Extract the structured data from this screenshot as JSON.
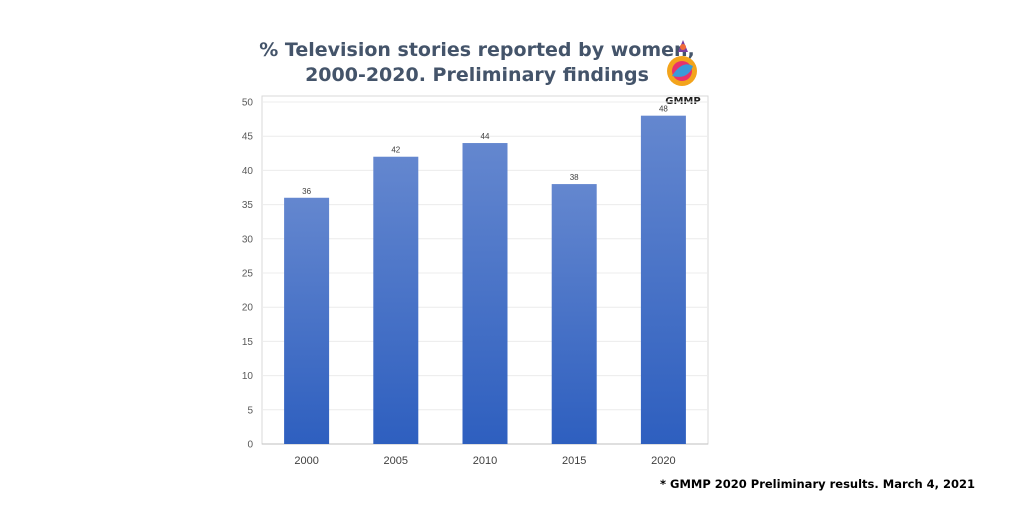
{
  "chart_data": {
    "type": "bar",
    "title_lines": [
      "% Television stories reported by women,",
      "2000-2020. Preliminary findings"
    ],
    "categories": [
      "2000",
      "2005",
      "2010",
      "2015",
      "2020"
    ],
    "values": [
      36,
      42,
      44,
      38,
      48
    ],
    "data_labels": [
      "36",
      "42",
      "44",
      "38",
      "48"
    ],
    "y_ticks": [
      "0",
      "5",
      "10",
      "15",
      "20",
      "25",
      "30",
      "35",
      "40",
      "45",
      "50"
    ],
    "ylim": [
      0,
      50
    ],
    "grid": true,
    "xlabel": "",
    "ylabel": "",
    "bar_color_top": "#6487cf",
    "bar_color_bottom": "#2e5fbf"
  },
  "logo": {
    "text": "GMMP",
    "icon": "gmmp-logo-icon"
  },
  "footnote": "* GMMP 2020 Preliminary results. March 4, 2021"
}
